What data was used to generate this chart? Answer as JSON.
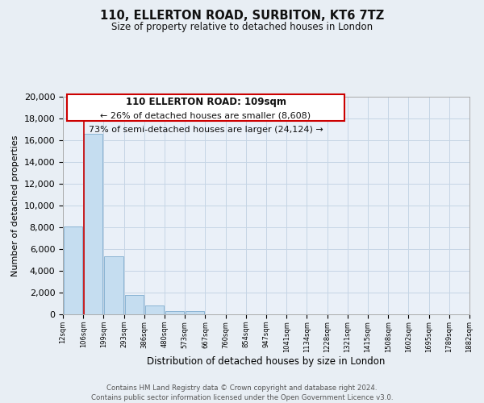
{
  "title": "110, ELLERTON ROAD, SURBITON, KT6 7TZ",
  "subtitle": "Size of property relative to detached houses in London",
  "xlabel": "Distribution of detached houses by size in London",
  "ylabel": "Number of detached properties",
  "bar_values": [
    8100,
    16600,
    5300,
    1800,
    800,
    300,
    300,
    0,
    0,
    0,
    0,
    0,
    0,
    0,
    0,
    0,
    0,
    0,
    0,
    0
  ],
  "bin_labels": [
    "12sqm",
    "106sqm",
    "199sqm",
    "293sqm",
    "386sqm",
    "480sqm",
    "573sqm",
    "667sqm",
    "760sqm",
    "854sqm",
    "947sqm",
    "1041sqm",
    "1134sqm",
    "1228sqm",
    "1321sqm",
    "1415sqm",
    "1508sqm",
    "1602sqm",
    "1695sqm",
    "1789sqm",
    "1882sqm"
  ],
  "bar_color": "#c5ddf0",
  "bar_edge_color": "#8ab4d4",
  "ylim": [
    0,
    20000
  ],
  "yticks": [
    0,
    2000,
    4000,
    6000,
    8000,
    10000,
    12000,
    14000,
    16000,
    18000,
    20000
  ],
  "property_label": "110 ELLERTON ROAD: 109sqm",
  "annotation_line1": "← 26% of detached houses are smaller (8,608)",
  "annotation_line2": "73% of semi-detached houses are larger (24,124) →",
  "footer_line1": "Contains HM Land Registry data © Crown copyright and database right 2024.",
  "footer_line2": "Contains public sector information licensed under the Open Government Licence v3.0.",
  "background_color": "#e8eef4",
  "plot_background_color": "#eaf0f8",
  "grid_color": "#c5d5e5"
}
